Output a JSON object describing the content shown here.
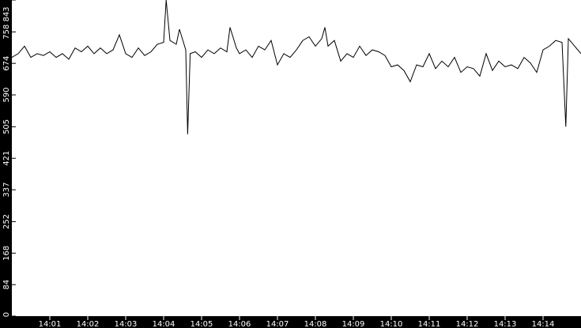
{
  "chart_data": {
    "type": "line",
    "background": "#000000",
    "plot_background": "#ffffff",
    "line_color": "#000000",
    "grid": false,
    "ylim": [
      0,
      843
    ],
    "xlim": [
      "14:00:00",
      "14:15:00"
    ],
    "y_ticks": [
      "0",
      "84",
      "168",
      "252",
      "337",
      "421",
      "505",
      "590",
      "674",
      "758",
      "843"
    ],
    "x_ticks": [
      "14:01",
      "14:02",
      "14:03",
      "14:04",
      "14:05",
      "14:06",
      "14:07",
      "14:08",
      "14:09",
      "14:10",
      "14:11",
      "14:12",
      "14:13",
      "14:14"
    ],
    "series": [
      {
        "x": [
          "14:00:00",
          "14:00:10",
          "14:00:20",
          "14:00:30",
          "14:00:40",
          "14:00:50",
          "14:01:00",
          "14:01:10",
          "14:01:20",
          "14:01:30",
          "14:01:40",
          "14:01:50",
          "14:02:00",
          "14:02:10",
          "14:02:20",
          "14:02:30",
          "14:02:40",
          "14:02:50",
          "14:03:00",
          "14:03:10",
          "14:03:20",
          "14:03:30",
          "14:03:40",
          "14:03:50",
          "14:04:00",
          "14:04:04",
          "14:04:10",
          "14:04:20",
          "14:04:25",
          "14:04:35",
          "14:04:38",
          "14:04:42",
          "14:04:50",
          "14:05:00",
          "14:05:10",
          "14:05:20",
          "14:05:30",
          "14:05:40",
          "14:05:45",
          "14:05:55",
          "14:06:00",
          "14:06:10",
          "14:06:20",
          "14:06:30",
          "14:06:40",
          "14:06:50",
          "14:07:00",
          "14:07:10",
          "14:07:20",
          "14:07:30",
          "14:07:40",
          "14:07:50",
          "14:08:00",
          "14:08:10",
          "14:08:15",
          "14:08:20",
          "14:08:30",
          "14:08:40",
          "14:08:50",
          "14:09:00",
          "14:09:10",
          "14:09:20",
          "14:09:30",
          "14:09:40",
          "14:09:50",
          "14:10:00",
          "14:10:10",
          "14:10:20",
          "14:10:30",
          "14:10:40",
          "14:10:50",
          "14:11:00",
          "14:11:10",
          "14:11:20",
          "14:11:30",
          "14:11:40",
          "14:11:50",
          "14:12:00",
          "14:12:10",
          "14:12:20",
          "14:12:30",
          "14:12:40",
          "14:12:50",
          "14:13:00",
          "14:13:10",
          "14:13:20",
          "14:13:30",
          "14:13:40",
          "14:13:50",
          "14:14:00",
          "14:14:10",
          "14:14:20",
          "14:14:30",
          "14:14:36",
          "14:14:40",
          "14:14:50",
          "14:15:00"
        ],
        "values": [
          690,
          700,
          720,
          690,
          700,
          695,
          705,
          690,
          700,
          685,
          715,
          705,
          720,
          700,
          715,
          700,
          710,
          750,
          700,
          690,
          715,
          695,
          705,
          725,
          730,
          843,
          735,
          725,
          765,
          710,
          485,
          700,
          705,
          690,
          710,
          700,
          715,
          705,
          770,
          715,
          700,
          710,
          690,
          720,
          710,
          735,
          670,
          700,
          690,
          710,
          735,
          745,
          720,
          740,
          770,
          720,
          735,
          680,
          700,
          690,
          720,
          695,
          710,
          705,
          695,
          665,
          670,
          655,
          625,
          670,
          665,
          700,
          660,
          680,
          665,
          690,
          650,
          665,
          660,
          640,
          700,
          655,
          680,
          665,
          670,
          660,
          690,
          675,
          650,
          710,
          720,
          735,
          730,
          505,
          740,
          720,
          700
        ]
      }
    ]
  }
}
